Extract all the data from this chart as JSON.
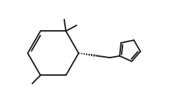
{
  "background": "#ffffff",
  "line_color": "#1a1a1a",
  "line_width": 1.4,
  "fig_width": 2.46,
  "fig_height": 1.54,
  "dpi": 100,
  "xlim": [
    0,
    10
  ],
  "ylim": [
    0,
    6.5
  ]
}
